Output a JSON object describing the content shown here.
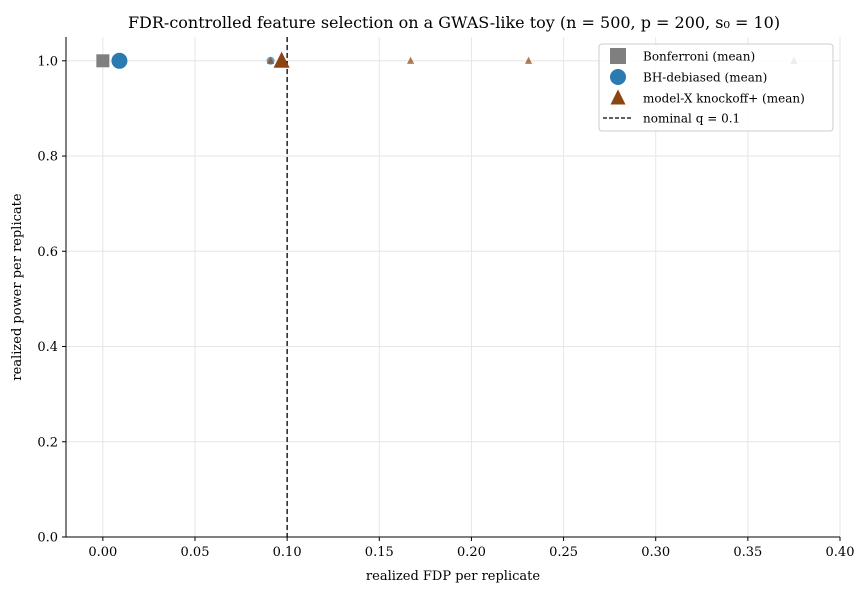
{
  "chart_data": {
    "type": "scatter",
    "title": "FDR-controlled feature selection on a GWAS-like toy (n = 500, p = 200, s₀ = 10)",
    "xlabel": "realized FDP per replicate",
    "ylabel": "realized power per replicate",
    "xlim": [
      -0.02,
      0.4
    ],
    "ylim": [
      0.0,
      1.05
    ],
    "xticks": [
      0.0,
      0.05,
      0.1,
      0.15,
      0.2,
      0.25,
      0.3,
      0.35,
      0.4
    ],
    "xtick_labels": [
      "0.00",
      "0.05",
      "0.10",
      "0.15",
      "0.20",
      "0.25",
      "0.30",
      "0.35",
      "0.40"
    ],
    "yticks": [
      0.0,
      0.2,
      0.4,
      0.6,
      0.8,
      1.0
    ],
    "ytick_labels": [
      "0.0",
      "0.2",
      "0.4",
      "0.6",
      "0.8",
      "1.0"
    ],
    "grid": true,
    "legend_position": "top-right",
    "reference_line": {
      "x": 0.1,
      "label": "nominal q = 0.1",
      "color": "#000000",
      "style": "dashed"
    },
    "series": [
      {
        "name": "Bonferroni (mean)",
        "marker": "square",
        "color": "#7f7f7f",
        "replicates": [
          {
            "x": 0.0,
            "y": 1.0
          }
        ],
        "mean": {
          "x": 0.0,
          "y": 1.0
        }
      },
      {
        "name": "BH-debiased (mean)",
        "marker": "circle",
        "color": "#2b7bb0",
        "replicates": [
          {
            "x": 0.0,
            "y": 1.0
          },
          {
            "x": 0.091,
            "y": 1.0
          }
        ],
        "mean": {
          "x": 0.009,
          "y": 1.0
        }
      },
      {
        "name": "model-X knockoff+ (mean)",
        "marker": "triangle",
        "color": "#8b4513",
        "replicates": [
          {
            "x": 0.0,
            "y": 1.0
          },
          {
            "x": 0.091,
            "y": 1.0
          },
          {
            "x": 0.167,
            "y": 1.0
          },
          {
            "x": 0.231,
            "y": 1.0
          },
          {
            "x": 0.375,
            "y": 1.0
          }
        ],
        "mean": {
          "x": 0.097,
          "y": 1.0
        }
      }
    ]
  }
}
